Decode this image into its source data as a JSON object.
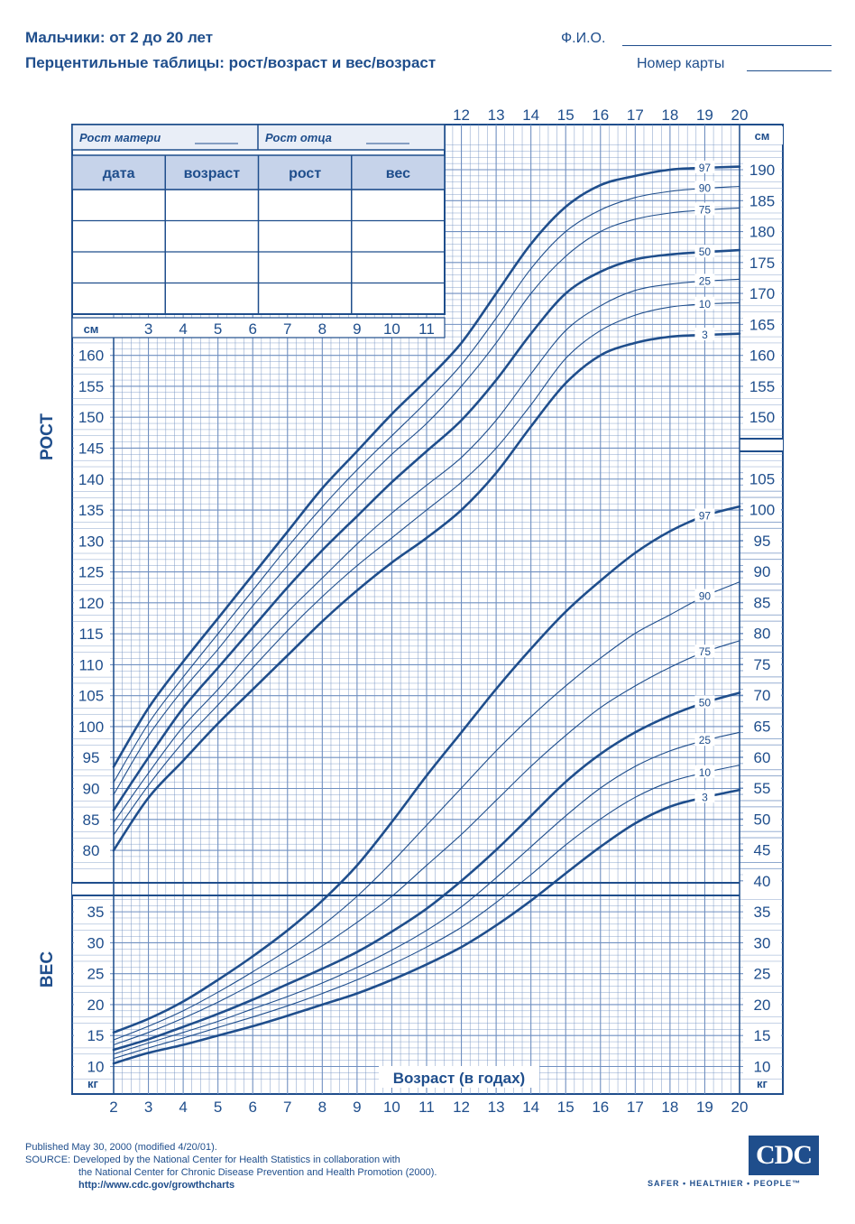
{
  "header": {
    "title": "Мальчики: от 2 до 20 лет",
    "subtitle": "Перцентильные таблицы: рост/возраст и вес/возраст",
    "name_label": "Ф.И.О.",
    "card_label": "Номер карты"
  },
  "record_table": {
    "mother_height": "Рост матери",
    "father_height": "Рост отца",
    "columns": [
      "дата",
      "возраст",
      "рост",
      "вес"
    ],
    "rows": 4
  },
  "footer": {
    "published": "Published May 30, 2000 (modified 4/20/01).",
    "source_line1": "SOURCE: Developed by the National Center for Health Statistics in collaboration with",
    "source_line2": "the National Center for Chronic Disease Prevention and Health Promotion (2000).",
    "url": "http://www.cdc.gov/growthcharts",
    "logo_text": "CDC",
    "tagline": "SAFER • HEALTHIER • PEOPLE™"
  },
  "colors": {
    "primary": "#1f4e8c",
    "grid": "#6f8fc0",
    "band": "#e9eef7"
  },
  "chart_data": [
    {
      "type": "line",
      "ylabel": "РОСТ",
      "unit": "см",
      "x_unit": "",
      "xlim": [
        2,
        20
      ],
      "ylim": [
        77,
        194
      ],
      "x_ticks": [
        2,
        3,
        4,
        5,
        6,
        7,
        8,
        9,
        10,
        11,
        12,
        13,
        14,
        15,
        16,
        17,
        18,
        19,
        20
      ],
      "y_ticks_left": [
        80,
        85,
        90,
        95,
        100,
        105,
        110,
        115,
        120,
        125,
        130,
        135,
        140,
        145,
        150,
        155,
        160
      ],
      "y_ticks_right": [
        150,
        155,
        160,
        165,
        170,
        175,
        180,
        185,
        190
      ],
      "series": [
        {
          "name": "97",
          "x": [
            2,
            3,
            4,
            5,
            6,
            7,
            8,
            9,
            10,
            11,
            12,
            13,
            14,
            15,
            16,
            17,
            18,
            19,
            20
          ],
          "values": [
            93.5,
            103,
            110.5,
            117.5,
            124.5,
            131.5,
            138.5,
            144.5,
            150.5,
            156,
            162,
            170,
            178,
            184,
            187.5,
            189,
            190,
            190.3,
            190.5
          ]
        },
        {
          "name": "90",
          "x": [
            2,
            3,
            4,
            5,
            6,
            7,
            8,
            9,
            10,
            11,
            12,
            13,
            14,
            15,
            16,
            17,
            18,
            19,
            20
          ],
          "values": [
            91,
            100.5,
            108,
            115,
            122,
            129,
            135.5,
            141.5,
            147,
            152.5,
            158.5,
            166,
            174,
            180,
            183.5,
            185.5,
            186.5,
            187,
            187.3
          ]
        },
        {
          "name": "75",
          "x": [
            2,
            3,
            4,
            5,
            6,
            7,
            8,
            9,
            10,
            11,
            12,
            13,
            14,
            15,
            16,
            17,
            18,
            19,
            20
          ],
          "values": [
            89,
            98.5,
            106,
            112.5,
            119.5,
            126,
            132.5,
            138.5,
            144,
            149,
            155,
            162,
            170,
            176,
            180,
            182,
            183,
            183.5,
            183.8
          ]
        },
        {
          "name": "50",
          "x": [
            2,
            3,
            4,
            5,
            6,
            7,
            8,
            9,
            10,
            11,
            12,
            13,
            14,
            15,
            16,
            17,
            18,
            19,
            20
          ],
          "values": [
            86.5,
            95,
            103,
            109.5,
            116,
            122.5,
            128.5,
            134,
            139.5,
            144.5,
            149.5,
            156,
            163.5,
            170,
            173.5,
            175.5,
            176.3,
            176.7,
            177
          ]
        },
        {
          "name": "25",
          "x": [
            2,
            3,
            4,
            5,
            6,
            7,
            8,
            9,
            10,
            11,
            12,
            13,
            14,
            15,
            16,
            17,
            18,
            19,
            20
          ],
          "values": [
            84.5,
            92.5,
            100,
            106,
            112.5,
            118.5,
            124,
            129.5,
            134.5,
            139,
            143.5,
            149.5,
            157,
            164,
            168,
            170.5,
            171.5,
            172,
            172.3
          ]
        },
        {
          "name": "10",
          "x": [
            2,
            3,
            4,
            5,
            6,
            7,
            8,
            9,
            10,
            11,
            12,
            13,
            14,
            15,
            16,
            17,
            18,
            19,
            20
          ],
          "values": [
            82.5,
            90.5,
            97.5,
            103.5,
            109.5,
            115.5,
            121,
            126,
            130.5,
            135,
            139.5,
            145,
            152,
            159.5,
            164,
            166.5,
            167.8,
            168.3,
            168.5
          ]
        },
        {
          "name": "3",
          "x": [
            2,
            3,
            4,
            5,
            6,
            7,
            8,
            9,
            10,
            11,
            12,
            13,
            14,
            15,
            16,
            17,
            18,
            19,
            20
          ],
          "values": [
            80,
            88.5,
            94.5,
            100.5,
            106,
            111.5,
            117,
            122,
            126.5,
            130.5,
            135,
            141,
            148.5,
            155.5,
            160,
            162,
            163,
            163.3,
            163.5
          ]
        }
      ]
    },
    {
      "type": "line",
      "ylabel": "ВЕС",
      "unit": "кг",
      "xlabel": "Возраст (в годах)",
      "xlim": [
        2,
        20
      ],
      "ylim": [
        8,
        106
      ],
      "x_ticks": [
        2,
        3,
        4,
        5,
        6,
        7,
        8,
        9,
        10,
        11,
        12,
        13,
        14,
        15,
        16,
        17,
        18,
        19,
        20
      ],
      "y_ticks_left": [
        10,
        15,
        20,
        25,
        30,
        35
      ],
      "y_ticks_right": [
        10,
        15,
        20,
        25,
        30,
        35,
        40,
        45,
        50,
        55,
        60,
        65,
        70,
        75,
        80,
        85,
        90,
        95,
        100,
        105
      ],
      "series": [
        {
          "name": "97",
          "x": [
            2,
            3,
            4,
            5,
            6,
            7,
            8,
            9,
            10,
            11,
            12,
            13,
            14,
            15,
            16,
            17,
            18,
            19,
            20
          ],
          "values": [
            15.5,
            17.7,
            20.5,
            24,
            27.8,
            32,
            36.8,
            42.5,
            49.5,
            57,
            64,
            71,
            77.5,
            83.5,
            88.5,
            93,
            96.5,
            99,
            100.5
          ]
        },
        {
          "name": "90",
          "x": [
            2,
            3,
            4,
            5,
            6,
            7,
            8,
            9,
            10,
            11,
            12,
            13,
            14,
            15,
            16,
            17,
            18,
            19,
            20
          ],
          "values": [
            14.3,
            16.5,
            19,
            22,
            25.3,
            28.8,
            32.8,
            37.5,
            43,
            49,
            55,
            61,
            66.5,
            71.5,
            76,
            80,
            83,
            86,
            88.3
          ]
        },
        {
          "name": "75",
          "x": [
            2,
            3,
            4,
            5,
            6,
            7,
            8,
            9,
            10,
            11,
            12,
            13,
            14,
            15,
            16,
            17,
            18,
            19,
            20
          ],
          "values": [
            13.5,
            15.5,
            17.8,
            20.4,
            23.3,
            26.3,
            29.5,
            33.3,
            37.5,
            42.5,
            47.5,
            53,
            58.5,
            63.5,
            68,
            71.5,
            74.5,
            77,
            78.8
          ]
        },
        {
          "name": "50",
          "x": [
            2,
            3,
            4,
            5,
            6,
            7,
            8,
            9,
            10,
            11,
            12,
            13,
            14,
            15,
            16,
            17,
            18,
            19,
            20
          ],
          "values": [
            12.7,
            14.4,
            16.4,
            18.5,
            20.8,
            23.3,
            25.8,
            28.5,
            31.8,
            35.5,
            40,
            45,
            50.5,
            56,
            60.5,
            64,
            66.7,
            68.8,
            70.4
          ]
        },
        {
          "name": "25",
          "x": [
            2,
            3,
            4,
            5,
            6,
            7,
            8,
            9,
            10,
            11,
            12,
            13,
            14,
            15,
            16,
            17,
            18,
            19,
            20
          ],
          "values": [
            12,
            13.8,
            15.5,
            17.3,
            19.3,
            21.3,
            23.5,
            26,
            28.8,
            32,
            35.8,
            40.5,
            45.5,
            50.5,
            55,
            58.5,
            61,
            62.7,
            64
          ]
        },
        {
          "name": "10",
          "x": [
            2,
            3,
            4,
            5,
            6,
            7,
            8,
            9,
            10,
            11,
            12,
            13,
            14,
            15,
            16,
            17,
            18,
            19,
            20
          ],
          "values": [
            11.3,
            13,
            14.6,
            16.3,
            18,
            19.8,
            21.8,
            24,
            26.5,
            29.3,
            32.5,
            36.5,
            41,
            45.8,
            50,
            53.5,
            56,
            57.5,
            58.7
          ]
        },
        {
          "name": "3",
          "x": [
            2,
            3,
            4,
            5,
            6,
            7,
            8,
            9,
            10,
            11,
            12,
            13,
            14,
            15,
            16,
            17,
            18,
            19,
            20
          ],
          "values": [
            10.5,
            12.2,
            13.5,
            15,
            16.5,
            18.2,
            20,
            21.8,
            24,
            26.5,
            29.3,
            32.8,
            36.8,
            41.2,
            45.5,
            49.3,
            52,
            53.5,
            54.7
          ]
        }
      ]
    }
  ]
}
